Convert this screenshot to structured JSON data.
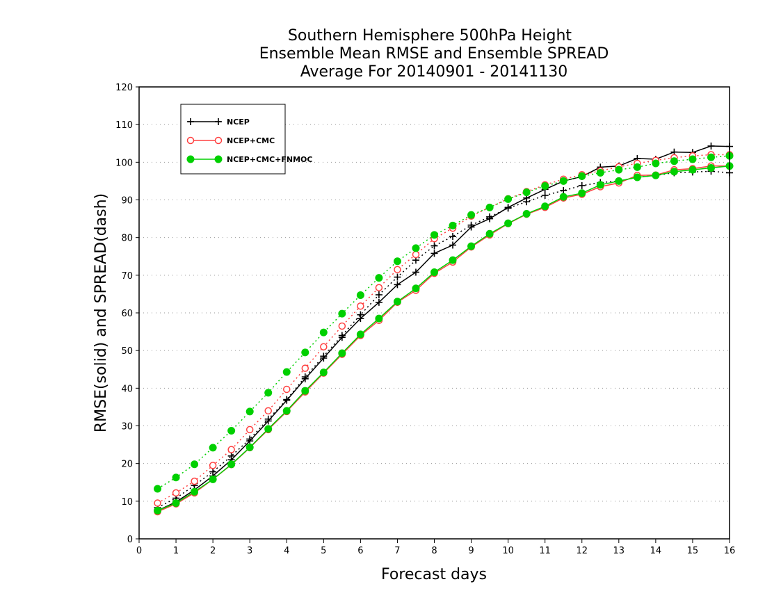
{
  "chart_data": {
    "type": "line",
    "title": [
      "Southern Hemisphere 500hPa Height",
      "Ensemble Mean RMSE and Ensemble SPREAD",
      "Average For 20140901 - 20141130"
    ],
    "xlabel": "Forecast days",
    "ylabel": "RMSE(solid) and SPREAD(dash)",
    "xlim": [
      0,
      16
    ],
    "ylim": [
      0,
      120
    ],
    "xticks": [
      0,
      1,
      2,
      3,
      4,
      5,
      6,
      7,
      8,
      9,
      10,
      11,
      12,
      13,
      14,
      15,
      16
    ],
    "yticks": [
      0,
      10,
      20,
      30,
      40,
      50,
      60,
      70,
      80,
      90,
      100,
      110,
      120
    ],
    "grid": "horizontal dotted",
    "legend_position": "top-left",
    "x": [
      0.5,
      1,
      1.5,
      2,
      2.5,
      3,
      3.5,
      4,
      4.5,
      5,
      5.5,
      6,
      6.5,
      7,
      7.5,
      8,
      8.5,
      9,
      9.5,
      10,
      10.5,
      11,
      11.5,
      12,
      12.5,
      13,
      13.5,
      14,
      14.5,
      15,
      15.5,
      16
    ],
    "series": [
      {
        "name": "NCEP",
        "color": "#000000",
        "marker": "plus",
        "rmse": [
          7.5,
          9.8,
          13.0,
          16.7,
          21.0,
          26.0,
          31.3,
          36.8,
          42.5,
          48.0,
          53.5,
          58.5,
          62.8,
          67.5,
          70.8,
          75.8,
          78.0,
          82.8,
          85.0,
          88.0,
          90.5,
          92.8,
          95.0,
          96.2,
          98.7,
          99.0,
          101.0,
          100.8,
          102.7,
          102.6,
          104.3,
          104.2
        ],
        "spread": [
          8.3,
          10.8,
          14.2,
          17.8,
          22.0,
          26.5,
          31.8,
          37.0,
          43.0,
          48.5,
          54.0,
          59.5,
          64.8,
          69.5,
          74.0,
          77.8,
          80.3,
          83.3,
          85.5,
          87.8,
          89.5,
          91.2,
          92.5,
          93.8,
          94.6,
          95.0,
          96.0,
          96.5,
          97.2,
          97.4,
          97.6,
          97.2
        ]
      },
      {
        "name": "NCEP+CMC",
        "color": "#ff4040",
        "marker": "circle",
        "rmse": [
          7.2,
          9.3,
          12.2,
          15.8,
          19.7,
          24.2,
          29.0,
          33.8,
          39.0,
          44.0,
          49.0,
          54.0,
          58.0,
          62.8,
          66.0,
          70.5,
          73.5,
          77.5,
          80.7,
          83.7,
          86.2,
          88.0,
          90.5,
          91.5,
          93.5,
          94.5,
          96.5,
          96.6,
          98.0,
          98.3,
          99.0,
          99.0
        ],
        "spread": [
          9.5,
          12.2,
          15.3,
          19.5,
          23.7,
          29.0,
          34.0,
          39.7,
          45.3,
          51.0,
          56.5,
          61.8,
          66.7,
          71.5,
          75.5,
          79.7,
          82.5,
          85.7,
          88.0,
          90.3,
          92.2,
          94.0,
          95.5,
          96.7,
          97.7,
          98.8,
          99.7,
          100.5,
          101.2,
          101.7,
          102.0,
          102.0
        ]
      },
      {
        "name": "NCEP+CMC+FNMOC",
        "color": "#00d000",
        "marker": "filled-circle",
        "rmse": [
          7.5,
          9.5,
          12.5,
          15.8,
          19.8,
          24.3,
          29.2,
          34.0,
          39.3,
          44.2,
          49.3,
          54.3,
          58.5,
          63.0,
          66.5,
          70.8,
          74.0,
          77.7,
          81.0,
          83.8,
          86.3,
          88.3,
          90.8,
          91.8,
          94.0,
          95.0,
          96.0,
          96.5,
          97.5,
          98.0,
          98.5,
          99.0
        ],
        "spread": [
          13.3,
          16.3,
          19.8,
          24.2,
          28.7,
          33.8,
          38.8,
          44.3,
          49.5,
          54.8,
          59.8,
          64.7,
          69.3,
          73.7,
          77.2,
          80.7,
          83.2,
          86.0,
          88.0,
          90.2,
          92.0,
          93.7,
          95.0,
          96.3,
          97.2,
          98.0,
          98.7,
          99.7,
          100.3,
          100.8,
          101.3,
          101.7
        ]
      }
    ]
  }
}
